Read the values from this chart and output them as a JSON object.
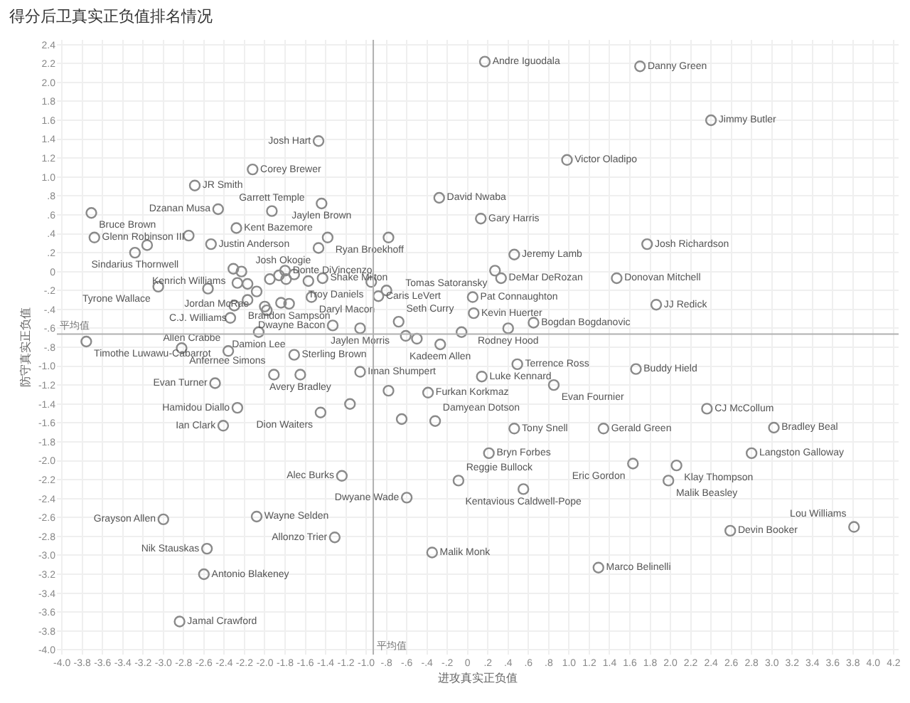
{
  "chart_data": {
    "type": "scatter",
    "title": "得分后卫真实正负值排名情况",
    "xlabel": "进攻真实正负值",
    "ylabel": "防守真实正负值",
    "x": [
      0.17,
      1.7,
      2.4,
      0.98,
      -1.47,
      -2.12,
      -2.69,
      -1.44,
      -2.46,
      -1.93,
      -3.71,
      -0.28,
      0.13,
      -2.28,
      -3.68,
      -2.75,
      -1.38,
      -0.78,
      -3.28,
      -3.16,
      -2.53,
      -1.47,
      -2.31,
      -2.23,
      -1.8,
      0.46,
      1.77,
      0.27,
      0.33,
      1.47,
      0.05,
      1.86,
      0.06,
      0.65,
      0.4,
      -0.06,
      -0.27,
      -0.61,
      -0.5,
      -0.68,
      -0.95,
      -0.8,
      -0.88,
      -2.08,
      -1.43,
      -1.54,
      -3.05,
      -2.3,
      -1.76,
      -1.84,
      -1.33,
      -1.06,
      -2.06,
      -3.76,
      -2.82,
      -2.36,
      -1.71,
      -1.65,
      -1.91,
      -1.06,
      -2.49,
      -2.27,
      -1.45,
      -1.16,
      -2.41,
      -2.56,
      -2.27,
      -2.17,
      -2.17,
      -2.0,
      -1.98,
      -2.34,
      -1.95,
      -1.86,
      -1.79,
      -1.71,
      -1.57,
      -0.78,
      -0.39,
      -0.65,
      -0.32,
      0.49,
      0.14,
      0.85,
      1.66,
      2.36,
      0.46,
      1.34,
      3.02,
      0.21,
      1.63,
      2.06,
      2.8,
      1.98,
      -0.09,
      0.55,
      2.59,
      3.81,
      1.29,
      -1.24,
      -0.6,
      -3.0,
      -2.08,
      -1.31,
      -2.57,
      -0.35,
      -2.6,
      -2.84
    ],
    "values": [
      2.22,
      2.17,
      1.6,
      1.18,
      1.38,
      1.08,
      0.91,
      0.72,
      0.66,
      0.64,
      0.62,
      0.78,
      0.56,
      0.46,
      0.36,
      0.38,
      0.36,
      0.36,
      0.2,
      0.28,
      0.29,
      0.25,
      0.03,
      0.0,
      0.01,
      0.18,
      0.29,
      0.01,
      -0.07,
      -0.07,
      -0.27,
      -0.35,
      -0.44,
      -0.54,
      -0.6,
      -0.64,
      -0.77,
      -0.68,
      -0.71,
      -0.53,
      -0.11,
      -0.2,
      -0.26,
      -0.21,
      -0.07,
      -0.27,
      -0.16,
      -0.36,
      -0.34,
      -0.33,
      -0.57,
      -0.6,
      -0.64,
      -0.74,
      -0.81,
      -0.84,
      -0.88,
      -1.09,
      -1.09,
      -1.06,
      -1.18,
      -1.44,
      -1.49,
      -1.4,
      -1.63,
      -0.18,
      -0.12,
      -0.13,
      -0.3,
      -0.37,
      -0.41,
      -0.49,
      -0.08,
      -0.04,
      -0.08,
      -0.03,
      -0.1,
      -1.26,
      -1.28,
      -1.56,
      -1.58,
      -0.98,
      -1.11,
      -1.2,
      -1.03,
      -1.45,
      -1.66,
      -1.66,
      -1.65,
      -1.92,
      -2.03,
      -2.05,
      -1.92,
      -2.21,
      -2.21,
      -2.3,
      -2.74,
      -2.7,
      -3.13,
      -2.16,
      -2.39,
      -2.62,
      -2.59,
      -2.81,
      -2.93,
      -2.97,
      -3.2,
      -3.7
    ],
    "value_labels": [
      "Andre Iguodala",
      "Danny Green",
      "Jimmy Butler",
      "Victor Oladipo",
      "Josh Hart",
      "Corey Brewer",
      "JR Smith",
      "Jaylen Brown",
      "Dzanan Musa",
      "Garrett Temple",
      "Bruce Brown",
      "David Nwaba",
      "Gary Harris",
      "Kent Bazemore",
      "Glenn Robinson III",
      null,
      "Ryan Broekhoff",
      null,
      "Sindarius Thornwell",
      null,
      "Justin Anderson",
      "Josh Okogie",
      "Kenrich Williams",
      null,
      "Donte DiVincenzo",
      "Jeremy Lamb",
      "Josh Richardson",
      "Tomas Satoransky",
      "DeMar DeRozan",
      "Donovan Mitchell",
      "Pat Connaughton",
      "JJ Redick",
      "Kevin Huerter",
      "Bogdan Bogdanovic",
      "Rodney Hood",
      null,
      "Kadeem Allen",
      null,
      null,
      "Seth Curry",
      "Troy Daniels",
      null,
      "Caris LeVert",
      "Jordan McRae",
      "Shake Milton",
      "Daryl Macon",
      "Tyrone Wallace",
      "C.J. Williams",
      "Brandon Sampson",
      null,
      "Dwayne Bacon",
      "Jaylen Morris",
      "Damion Lee",
      "Timothe Luwawu-Cabarrot",
      "Anfernee Simons",
      "Allen Crabbe",
      "Sterling Brown",
      "Avery Bradley",
      null,
      "Iman Shumpert",
      "Evan Turner",
      "Hamidou Diallo",
      "Dion Waiters",
      null,
      "Ian Clark",
      null,
      null,
      null,
      null,
      null,
      null,
      null,
      null,
      null,
      null,
      null,
      null,
      null,
      "Furkan Korkmaz",
      null,
      "Damyean Dotson",
      "Terrence Ross",
      "Luke Kennard",
      "Evan Fournier",
      "Buddy Hield",
      "CJ McCollum",
      "Tony Snell",
      "Gerald Green",
      "Bradley Beal",
      "Bryn Forbes",
      "Eric Gordon",
      "Klay Thompson",
      "Langston Galloway",
      "Malik Beasley",
      "Reggie Bullock",
      "Kentavious Caldwell-Pope",
      "Devin Booker",
      "Lou Williams",
      "Marco Belinelli",
      "Alec Burks",
      "Dwyane Wade",
      "Grayson Allen",
      "Wayne Selden",
      "Allonzo Trier",
      "Nik Stauskas",
      "Malik Monk",
      "Antonio Blakeney",
      "Jamal Crawford"
    ],
    "color": "#8a8a8a",
    "marker": "circle",
    "grid": true,
    "legend": false,
    "xlim": [
      -4.05,
      4.25
    ],
    "ylim": [
      -4.05,
      2.45
    ],
    "xticks": [
      {
        "value": -4.0,
        "label": "-4.0"
      },
      -3.8,
      -3.6,
      -3.4,
      -3.2,
      {
        "value": -3.0,
        "label": "-3.0"
      },
      -2.8,
      -2.6,
      -2.4,
      -2.2,
      {
        "value": -2.0,
        "label": "-2.0"
      },
      -1.8,
      -1.6,
      -1.4,
      -1.2,
      {
        "value": -1.0,
        "label": "-1.0"
      },
      {
        "value": -0.8,
        "label": "-.8"
      },
      {
        "value": -0.6,
        "label": "-.6"
      },
      {
        "value": -0.4,
        "label": "-.4"
      },
      {
        "value": -0.2,
        "label": "-.2"
      },
      0,
      {
        "value": 0.2,
        "label": ".2"
      },
      {
        "value": 0.4,
        "label": ".4"
      },
      {
        "value": 0.6,
        "label": ".6"
      },
      {
        "value": 0.8,
        "label": ".8"
      },
      {
        "value": 1.0,
        "label": "1.0"
      },
      1.2,
      1.4,
      1.6,
      1.8,
      {
        "value": 2.0,
        "label": "2.0"
      },
      2.2,
      2.4,
      2.6,
      2.8,
      {
        "value": 3.0,
        "label": "3.0"
      },
      3.2,
      3.4,
      3.6,
      3.8,
      {
        "value": 4.0,
        "label": "4.0"
      },
      4.2
    ],
    "yticks": [
      2.4,
      2.2,
      {
        "value": 2.0,
        "label": "2.0"
      },
      1.8,
      1.6,
      1.4,
      1.2,
      {
        "value": 1.0,
        "label": "1.0"
      },
      {
        "value": 0.8,
        "label": ".8"
      },
      {
        "value": 0.6,
        "label": ".6"
      },
      {
        "value": 0.4,
        "label": ".4"
      },
      {
        "value": 0.2,
        "label": ".2"
      },
      0,
      {
        "value": -0.2,
        "label": "-.2"
      },
      {
        "value": -0.4,
        "label": "-.4"
      },
      {
        "value": -0.6,
        "label": "-.6"
      },
      {
        "value": -0.8,
        "label": "-.8"
      },
      {
        "value": -1.0,
        "label": "-1.0"
      },
      -1.2,
      -1.4,
      -1.6,
      -1.8,
      {
        "value": -2.0,
        "label": "-2.0"
      },
      -2.2,
      -2.4,
      -2.6,
      -2.8,
      {
        "value": -3.0,
        "label": "-3.0"
      },
      -3.2,
      -3.4,
      -3.6,
      -3.8,
      {
        "value": -4.0,
        "label": "-4.0"
      }
    ],
    "ref_lines": [
      {
        "axis": "x",
        "value": -0.93,
        "label": "平均值",
        "color": "#b0b0b0"
      },
      {
        "axis": "y",
        "value": -0.66,
        "label": "平均值",
        "color": "#b0b0b0"
      }
    ]
  }
}
